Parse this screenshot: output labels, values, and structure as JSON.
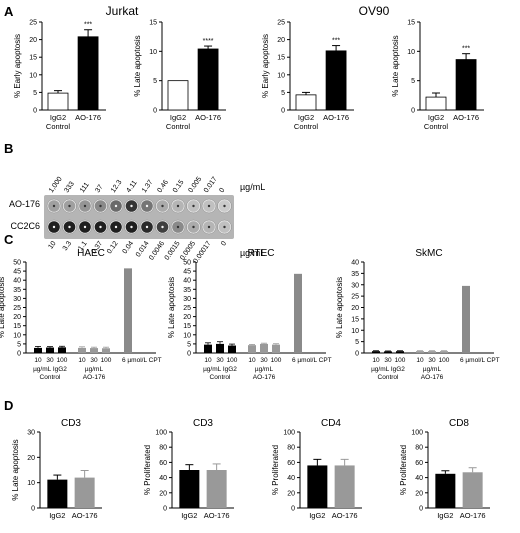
{
  "panels": {
    "A": "A",
    "B": "B",
    "C": "C",
    "D": "D"
  },
  "panel_a": {
    "group_left": "Jurkat",
    "group_right": "OV90"
  },
  "panel_b": {
    "ao_label": "AO-176",
    "cc_label": "CC2C6",
    "unit": "µg/mL",
    "ao_concentrations": [
      "1,000",
      "333",
      "111",
      "37",
      "12.3",
      "4.11",
      "1.37",
      "0.46",
      "0.15",
      "0.005",
      "0.017",
      "0"
    ],
    "cc_concentrations": [
      "10",
      "3.3",
      "1.1",
      "0.37",
      "0.12",
      "0.04",
      "0.014",
      "0.0046",
      "0.0015",
      "0.0005",
      "0.00017",
      "0"
    ],
    "ao_well_intensity": [
      0.35,
      0.35,
      0.4,
      0.45,
      0.6,
      0.85,
      0.55,
      0.3,
      0.25,
      0.2,
      0.2,
      0.15
    ],
    "cc_well_intensity": [
      0.95,
      0.95,
      0.95,
      0.95,
      0.95,
      0.95,
      0.9,
      0.8,
      0.45,
      0.3,
      0.25,
      0.2
    ]
  },
  "chart_data": [
    {
      "id": "a1",
      "type": "bar",
      "ylabel": "% Early apoptosis",
      "categories": [
        "IgG2 Control",
        "AO-176"
      ],
      "values": [
        4.8,
        20.8
      ],
      "errors": [
        0.7,
        2.0
      ],
      "ylim": [
        0,
        25
      ],
      "yticks": [
        "0",
        "5",
        "10",
        "15",
        "20",
        "25"
      ],
      "annotations": [
        "",
        "***"
      ]
    },
    {
      "id": "a2",
      "type": "bar",
      "ylabel": "% Late apoptosis",
      "categories": [
        "IgG2 Control",
        "AO-176"
      ],
      "values": [
        5.0,
        10.4
      ],
      "errors": [
        0,
        0.5
      ],
      "ylim": [
        0,
        15
      ],
      "yticks": [
        "0",
        "5",
        "10",
        "15"
      ],
      "annotations": [
        "",
        "****"
      ]
    },
    {
      "id": "a3",
      "type": "bar",
      "ylabel": "% Early apoptosis",
      "categories": [
        "IgG2 Control",
        "AO-176"
      ],
      "values": [
        4.3,
        16.8
      ],
      "errors": [
        0.7,
        1.5
      ],
      "ylim": [
        0,
        25
      ],
      "yticks": [
        "0",
        "5",
        "10",
        "15",
        "20",
        "25"
      ],
      "annotations": [
        "",
        "***"
      ]
    },
    {
      "id": "a4",
      "type": "bar",
      "ylabel": "% Late apoptosis",
      "categories": [
        "IgG2 Control",
        "AO-176"
      ],
      "values": [
        2.2,
        8.6
      ],
      "errors": [
        0.7,
        1.0
      ],
      "ylim": [
        0,
        15
      ],
      "yticks": [
        "0",
        "5",
        "10",
        "15"
      ],
      "annotations": [
        "",
        "***"
      ]
    },
    {
      "id": "c1",
      "type": "bar",
      "title": "HAEC",
      "ylabel": "% Late apoptosis",
      "ylim": [
        0,
        50
      ],
      "yticks": [
        "0",
        "5",
        "10",
        "15",
        "20",
        "25",
        "30",
        "35",
        "40",
        "45",
        "50"
      ],
      "categories": [
        "10",
        "30",
        "100",
        "10",
        "30",
        "100",
        "6 µmol/L CPT"
      ],
      "groups": [
        "µg/mL IgG2 Control",
        "µg/mL AO-176"
      ],
      "values": [
        2.8,
        3.0,
        3.1,
        2.8,
        2.7,
        2.6,
        46.5
      ],
      "errors": [
        0.8,
        0.5,
        0.6,
        0.6,
        0.5,
        0.6,
        0
      ]
    },
    {
      "id": "c2",
      "type": "bar",
      "title": "RTEC",
      "ylabel": "% Late apoptosis",
      "ylim": [
        0,
        50
      ],
      "yticks": [
        "0",
        "5",
        "10",
        "15",
        "20",
        "25",
        "30",
        "35",
        "40",
        "45",
        "50"
      ],
      "categories": [
        "10",
        "30",
        "100",
        "10",
        "30",
        "100",
        "6 µmol/L CPT"
      ],
      "groups": [
        "µg/mL IgG2 Control",
        "µg/mL AO-176"
      ],
      "values": [
        4.6,
        5.0,
        4.1,
        4.3,
        5.0,
        4.6,
        43.5
      ],
      "errors": [
        1.0,
        1.2,
        0.8,
        0.4,
        0.4,
        0.5,
        0
      ]
    },
    {
      "id": "c3",
      "type": "bar",
      "title": "SkMC",
      "ylabel": "% Late apoptosis",
      "ylim": [
        0,
        40
      ],
      "yticks": [
        "0",
        "5",
        "10",
        "15",
        "20",
        "25",
        "30",
        "35",
        "40"
      ],
      "categories": [
        "10",
        "30",
        "100",
        "10",
        "30",
        "100",
        "6 µmol/L CPT"
      ],
      "groups": [
        "µg/mL IgG2 Control",
        "µg/mL AO-176"
      ],
      "values": [
        0.8,
        0.7,
        0.8,
        0.8,
        0.8,
        0.8,
        29.5
      ],
      "errors": [
        0.2,
        0.2,
        0.2,
        0.2,
        0.2,
        0.2,
        0
      ]
    },
    {
      "id": "d1",
      "type": "bar",
      "title": "CD3",
      "ylabel": "% Late apoptosis",
      "ylim": [
        0,
        30
      ],
      "yticks": [
        "0",
        "10",
        "20",
        "30"
      ],
      "categories": [
        "IgG2",
        "AO-176"
      ],
      "values": [
        11.2,
        12.0
      ],
      "errors": [
        1.8,
        2.8
      ]
    },
    {
      "id": "d2",
      "type": "bar",
      "title": "CD3",
      "ylabel": "% Proliferated",
      "ylim": [
        0,
        100
      ],
      "yticks": [
        "0",
        "20",
        "40",
        "60",
        "80",
        "100"
      ],
      "categories": [
        "IgG2",
        "AO-176"
      ],
      "values": [
        50,
        50
      ],
      "errors": [
        7,
        8
      ]
    },
    {
      "id": "d3",
      "type": "bar",
      "title": "CD4",
      "ylabel": "% Proliferated",
      "ylim": [
        0,
        100
      ],
      "yticks": [
        "0",
        "20",
        "40",
        "60",
        "80",
        "100"
      ],
      "categories": [
        "IgG2",
        "AO-176"
      ],
      "values": [
        56,
        56
      ],
      "errors": [
        8,
        8
      ]
    },
    {
      "id": "d4",
      "type": "bar",
      "title": "CD8",
      "ylabel": "% Proliferated",
      "ylim": [
        0,
        100
      ],
      "yticks": [
        "0",
        "20",
        "40",
        "60",
        "80",
        "100"
      ],
      "categories": [
        "IgG2",
        "AO-176"
      ],
      "values": [
        45,
        47
      ],
      "errors": [
        4,
        6
      ]
    }
  ],
  "colors": {
    "black": "#000000",
    "gray": "#999999",
    "cpt": "#8a8a8a",
    "white": "#ffffff"
  }
}
